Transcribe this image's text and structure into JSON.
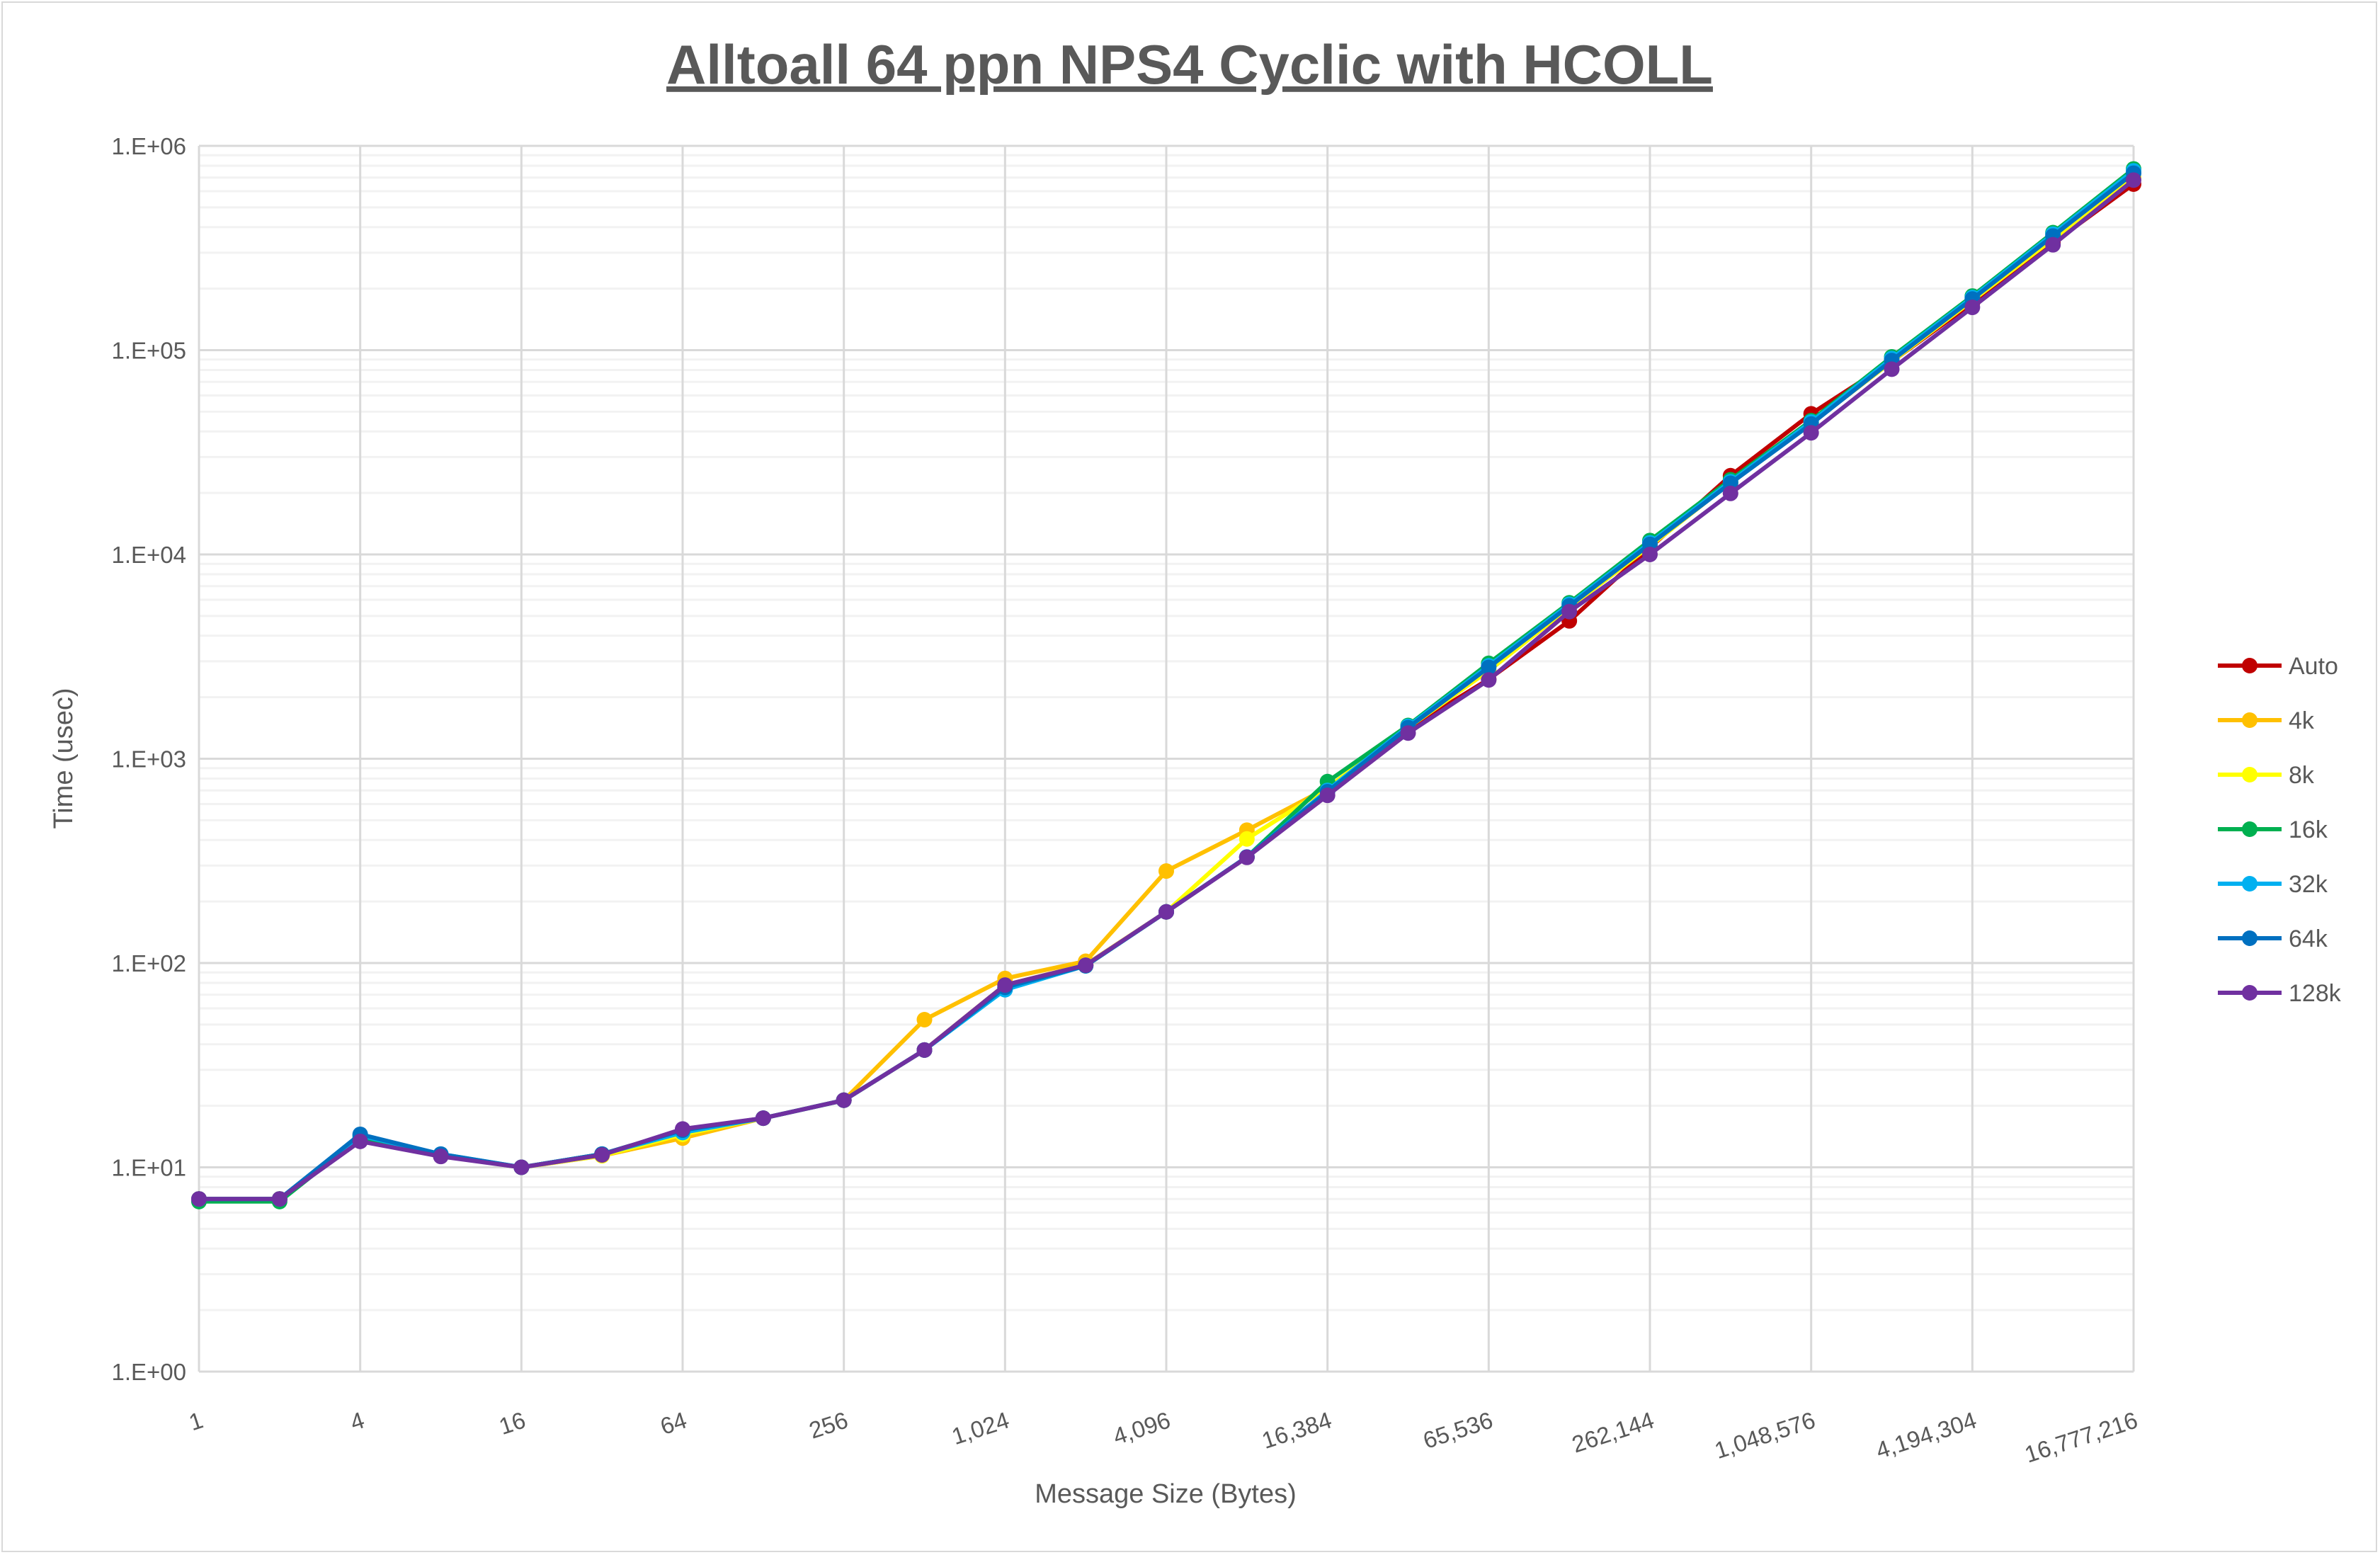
{
  "chart_data": {
    "type": "line",
    "title": "Alltoall 64 ppn NPS4 Cyclic with HCOLL",
    "xlabel": "Message Size (Bytes)",
    "ylabel": "Time (usec)",
    "x_scale": "log2",
    "y_scale": "log10",
    "ylim": [
      1,
      1000000
    ],
    "y_tick_labels": [
      "1.E+00",
      "1.E+01",
      "1.E+02",
      "1.E+03",
      "1.E+04",
      "1.E+05",
      "1.E+06"
    ],
    "x_tick_labels": [
      "1",
      "4",
      "16",
      "64",
      "256",
      "1,024",
      "4,096",
      "16,384",
      "65,536",
      "262,144",
      "1,048,576",
      "4,194,304",
      "16,777,216"
    ],
    "grid": true,
    "legend_position": "right",
    "x": [
      1,
      2,
      4,
      8,
      16,
      32,
      64,
      128,
      256,
      512,
      1024,
      2048,
      4096,
      8192,
      16384,
      32768,
      65536,
      131072,
      262144,
      524288,
      1048576,
      2097152,
      4194304,
      8388608,
      16777216
    ],
    "series": [
      {
        "name": "Auto",
        "color": "#C00000",
        "values": [
          7.0,
          7.0,
          13.6,
          11.4,
          10.0,
          11.6,
          15.2,
          17.4,
          21.3,
          37.5,
          78,
          98,
          178,
          330,
          700,
          1400,
          2450,
          4730,
          10800,
          24300,
          48800,
          88000,
          170000,
          335000,
          650000
        ]
      },
      {
        "name": "4k",
        "color": "#FFC000",
        "values": [
          7.0,
          7.0,
          13.6,
          11.4,
          10.0,
          11.4,
          13.9,
          17.4,
          21.3,
          52.8,
          84,
          102,
          282,
          447,
          720,
          1420,
          2700,
          5500,
          11000,
          22500,
          44000,
          88000,
          175000,
          350000,
          700000
        ]
      },
      {
        "name": "8k",
        "color": "#FFFF00",
        "values": [
          7.0,
          7.0,
          13.6,
          11.4,
          10.0,
          11.4,
          14.5,
          17.4,
          21.3,
          37.5,
          78,
          98,
          178,
          405,
          720,
          1420,
          2700,
          5500,
          11000,
          22500,
          44000,
          88000,
          175000,
          350000,
          700000
        ]
      },
      {
        "name": "16k",
        "color": "#00B050",
        "values": [
          6.8,
          6.8,
          14.0,
          11.5,
          10.0,
          11.6,
          15.0,
          17.4,
          21.3,
          37.5,
          76,
          97,
          178,
          330,
          773,
          1455,
          2930,
          5800,
          11700,
          23200,
          45200,
          92700,
          184000,
          376000,
          771000
        ]
      },
      {
        "name": "32k",
        "color": "#00B0F0",
        "values": [
          7.0,
          7.0,
          14.3,
          11.6,
          10.0,
          11.6,
          14.8,
          17.4,
          21.3,
          37.5,
          74,
          97,
          178,
          330,
          700,
          1440,
          2850,
          5700,
          11400,
          22700,
          44500,
          91000,
          181000,
          370000,
          755000
        ]
      },
      {
        "name": "64k",
        "color": "#0070C0",
        "values": [
          7.0,
          7.0,
          14.5,
          11.6,
          10.0,
          11.6,
          15.2,
          17.4,
          21.3,
          37.5,
          76,
          97,
          178,
          330,
          690,
          1420,
          2800,
          5600,
          11200,
          22300,
          43500,
          89000,
          178000,
          362000,
          735000
        ]
      },
      {
        "name": "128k",
        "color": "#7030A0",
        "values": [
          7.0,
          7.0,
          13.4,
          11.3,
          10.0,
          11.5,
          15.4,
          17.4,
          21.3,
          37.5,
          78,
          97.6,
          178,
          329,
          662,
          1336,
          2430,
          5250,
          10000,
          19900,
          39400,
          80700,
          162000,
          328000,
          680000
        ]
      }
    ]
  }
}
